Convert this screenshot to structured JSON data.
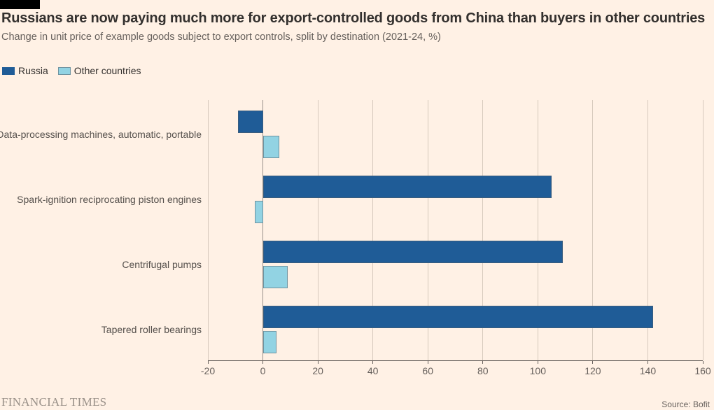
{
  "header": {
    "title": "Russians are now paying much more for export-controlled goods from China than buyers in other countries",
    "subtitle": "Change in unit price of example goods subject to export controls, split by destination (2021-24, %)"
  },
  "legend": [
    {
      "label": "Russia",
      "color": "#1f5c97"
    },
    {
      "label": "Other countries",
      "color": "#92d3e3"
    }
  ],
  "chart_data": {
    "type": "bar",
    "orientation": "horizontal",
    "title": "Russians are now paying much more for export-controlled goods from China than buyers in other countries",
    "subtitle": "Change in unit price of example goods subject to export controls, split by destination (2021-24, %)",
    "categories": [
      "Data-processing machines, automatic, portable",
      "Spark-ignition reciprocating piston engines",
      "Centrifugal pumps",
      "Tapered roller bearings"
    ],
    "series": [
      {
        "name": "Russia",
        "color": "#1f5c97",
        "values": [
          -9,
          105,
          109,
          142
        ]
      },
      {
        "name": "Other countries",
        "color": "#92d3e3",
        "values": [
          6,
          -3,
          9,
          5
        ]
      }
    ],
    "xlabel": "",
    "ylabel": "",
    "xlim": [
      -20,
      160
    ],
    "xticks": [
      -20,
      0,
      20,
      40,
      60,
      80,
      100,
      120,
      140,
      160
    ],
    "grid": true,
    "legend_position": "top-left",
    "unit": "%"
  },
  "footer": {
    "brand": "FINANCIAL TIMES",
    "source": "Source: Bofit"
  },
  "colors": {
    "background": "#fff1e5",
    "title_text": "#33302e",
    "subtitle_text": "#66605c",
    "gridline": "#d6c9bc",
    "zero_line": "#99908a",
    "axis_line": "#66605c",
    "tick_text": "#66605c",
    "category_text": "#55504c",
    "flag": "#000000",
    "brand_text": "#9a9189",
    "source_text": "#66605c"
  }
}
